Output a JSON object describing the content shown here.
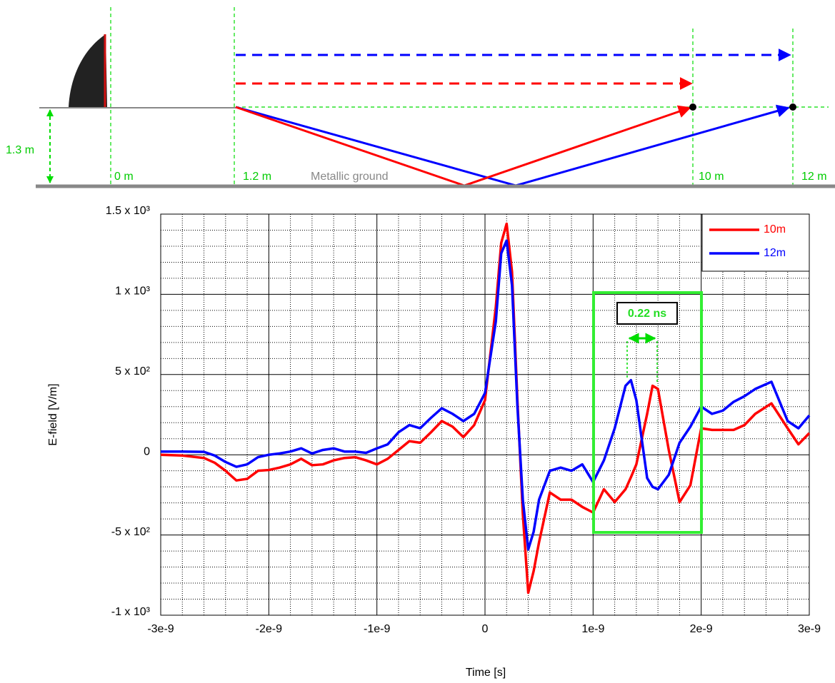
{
  "diagram": {
    "height_label": "1.3 m",
    "distance_labels": [
      "0 m",
      "1.2 m",
      "10 m",
      "12 m"
    ],
    "ground_label": "Metallic ground"
  },
  "chart_data": {
    "type": "line",
    "x_label": "Time [s]",
    "y_label": "E-field [V/m]",
    "annotation": "0.22 ns",
    "x": [
      -3e-09,
      -2.8e-09,
      -2.6e-09,
      -2.5e-09,
      -2.4e-09,
      -2.3e-09,
      -2.2e-09,
      -2.1e-09,
      -2e-09,
      -1.9e-09,
      -1.8e-09,
      -1.7e-09,
      -1.6e-09,
      -1.5e-09,
      -1.4e-09,
      -1.3e-09,
      -1.2e-09,
      -1.1e-09,
      -1e-09,
      -9e-10,
      -8e-10,
      -7e-10,
      -6e-10,
      -5e-10,
      -4e-10,
      -3e-10,
      -2e-10,
      -1e-10,
      0,
      1e-10,
      1.5e-10,
      2e-10,
      2.5e-10,
      3e-10,
      3.5e-10,
      4e-10,
      4.5e-10,
      5e-10,
      6e-10,
      7e-10,
      8e-10,
      9e-10,
      1e-09,
      1.1e-09,
      1.2e-09,
      1.3e-09,
      1.35e-09,
      1.4e-09,
      1.5e-09,
      1.55e-09,
      1.6e-09,
      1.7e-09,
      1.8e-09,
      1.9e-09,
      2e-09,
      2.1e-09,
      2.2e-09,
      2.3e-09,
      2.4e-09,
      2.5e-09,
      2.65e-09,
      2.8e-09,
      2.9e-09,
      3e-09
    ],
    "series": [
      {
        "name": "10m",
        "color": "#ff0000",
        "values": [
          0,
          -5,
          -20,
          -50,
          -100,
          -160,
          -150,
          -100,
          -95,
          -80,
          -60,
          -25,
          -65,
          -60,
          -35,
          -20,
          -15,
          -35,
          -60,
          -25,
          30,
          85,
          75,
          140,
          210,
          175,
          110,
          185,
          340,
          920,
          1320,
          1440,
          1140,
          340,
          -370,
          -860,
          -725,
          -545,
          -235,
          -280,
          -280,
          -325,
          -360,
          -215,
          -295,
          -215,
          -140,
          -60,
          255,
          430,
          410,
          30,
          -295,
          -190,
          165,
          155,
          155,
          155,
          185,
          255,
          320,
          165,
          65,
          135
        ]
      },
      {
        "name": "12m",
        "color": "#0000ff",
        "values": [
          20,
          20,
          18,
          -5,
          -45,
          -75,
          -60,
          -15,
          0,
          8,
          20,
          40,
          8,
          30,
          40,
          20,
          20,
          12,
          40,
          65,
          140,
          185,
          165,
          230,
          290,
          255,
          210,
          255,
          385,
          830,
          1255,
          1335,
          1055,
          300,
          -280,
          -590,
          -480,
          -280,
          -100,
          -80,
          -100,
          -60,
          -170,
          -35,
          165,
          430,
          465,
          340,
          -145,
          -200,
          -215,
          -125,
          75,
          175,
          300,
          255,
          275,
          330,
          365,
          410,
          455,
          210,
          165,
          245
        ]
      }
    ],
    "xlim": [
      -3e-09,
      3e-09
    ],
    "xticks": [
      -3e-09,
      -2e-09,
      -1e-09,
      0,
      1e-09,
      2e-09,
      3e-09
    ],
    "ylim": [
      -1000,
      1500
    ],
    "yticks": [
      {
        "value": -1000,
        "label": "-1 x 10³"
      },
      {
        "value": -500,
        "label": "-5 x 10²"
      },
      0,
      {
        "value": 500,
        "label": "5 x 10²"
      },
      {
        "value": 1000,
        "label": "1 x 10³"
      },
      {
        "value": 1500,
        "label": "1.5 x 10³"
      }
    ],
    "grid": true,
    "legend": "upper right"
  }
}
